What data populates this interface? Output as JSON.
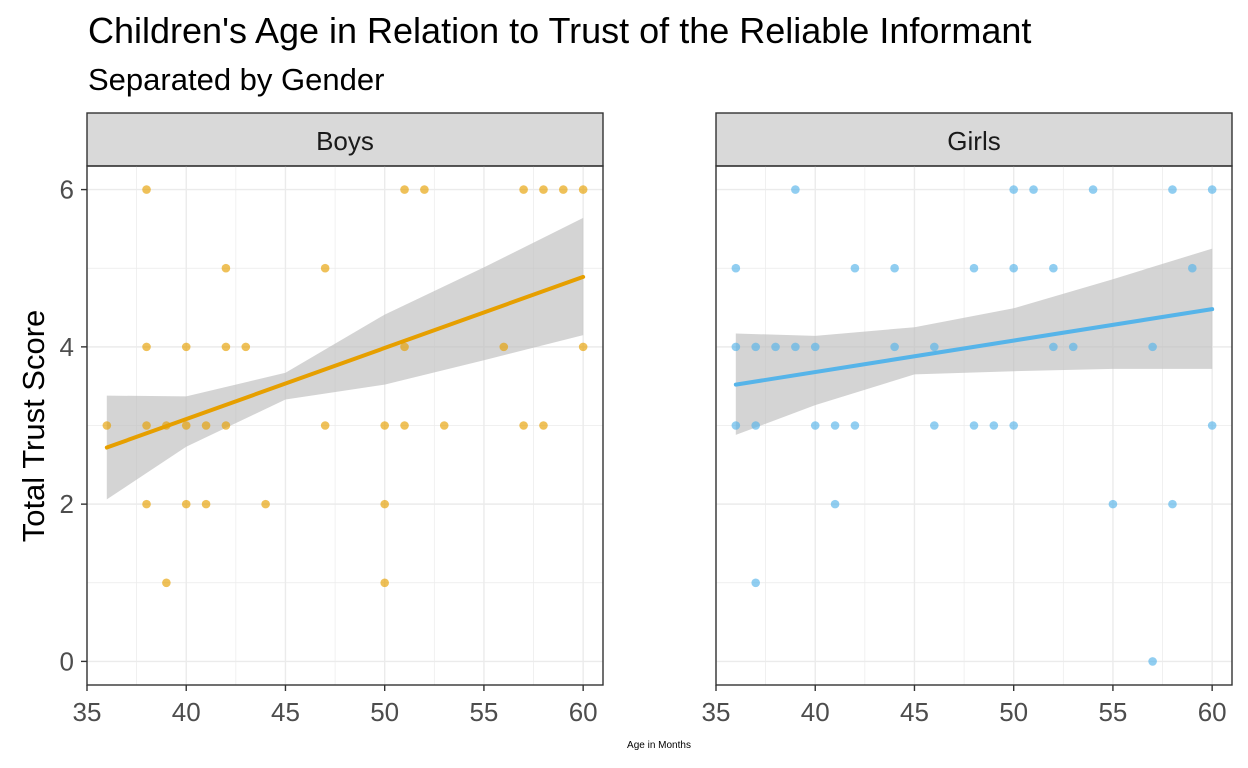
{
  "chart_data": {
    "type": "scatter",
    "title": "Children's Age in Relation to Trust of the Reliable Informant",
    "subtitle": "Separated by Gender",
    "xlabel": "Age in Months",
    "ylabel": "Total Trust Score",
    "xlim": [
      35,
      61
    ],
    "ylim": [
      -0.3,
      6.3
    ],
    "xticks": [
      35,
      40,
      45,
      50,
      55,
      60
    ],
    "yticks": [
      0,
      2,
      4,
      6
    ],
    "grid": true,
    "colors": {
      "boys": "#E69F00",
      "girls": "#56B4E9",
      "band": "#bdbdbd",
      "strip": "#d9d9d9"
    },
    "panels": [
      {
        "name": "Boys",
        "color": "#E69F00",
        "points": [
          [
            36,
            3
          ],
          [
            38,
            3
          ],
          [
            38,
            2
          ],
          [
            38,
            4
          ],
          [
            38,
            6
          ],
          [
            39,
            3
          ],
          [
            39,
            1
          ],
          [
            40,
            3
          ],
          [
            40,
            2
          ],
          [
            40,
            4
          ],
          [
            41,
            3
          ],
          [
            41,
            2
          ],
          [
            42,
            3
          ],
          [
            42,
            4
          ],
          [
            42,
            5
          ],
          [
            43,
            4
          ],
          [
            44,
            2
          ],
          [
            47,
            5
          ],
          [
            47,
            3
          ],
          [
            50,
            3
          ],
          [
            50,
            2
          ],
          [
            50,
            1
          ],
          [
            51,
            6
          ],
          [
            51,
            4
          ],
          [
            51,
            3
          ],
          [
            52,
            6
          ],
          [
            53,
            3
          ],
          [
            56,
            4
          ],
          [
            57,
            6
          ],
          [
            57,
            3
          ],
          [
            58,
            6
          ],
          [
            58,
            3
          ],
          [
            59,
            6
          ],
          [
            60,
            6
          ],
          [
            60,
            4
          ]
        ],
        "fit": {
          "x": [
            36,
            60
          ],
          "y": [
            2.72,
            4.89
          ]
        },
        "ci": [
          [
            36,
            2.06,
            3.38
          ],
          [
            40,
            2.73,
            3.37
          ],
          [
            45,
            3.33,
            3.67
          ],
          [
            50,
            3.52,
            4.41
          ],
          [
            55,
            3.83,
            5.01
          ],
          [
            60,
            4.15,
            5.64
          ]
        ]
      },
      {
        "name": "Girls",
        "color": "#56B4E9",
        "points": [
          [
            36,
            5
          ],
          [
            36,
            4
          ],
          [
            36,
            3
          ],
          [
            37,
            4
          ],
          [
            37,
            3
          ],
          [
            37,
            1
          ],
          [
            38,
            4
          ],
          [
            39,
            6
          ],
          [
            39,
            4
          ],
          [
            40,
            4
          ],
          [
            40,
            3
          ],
          [
            41,
            3
          ],
          [
            41,
            2
          ],
          [
            42,
            5
          ],
          [
            42,
            3
          ],
          [
            44,
            5
          ],
          [
            44,
            4
          ],
          [
            46,
            4
          ],
          [
            46,
            3
          ],
          [
            48,
            5
          ],
          [
            48,
            3
          ],
          [
            49,
            3
          ],
          [
            50,
            6
          ],
          [
            50,
            5
          ],
          [
            50,
            3
          ],
          [
            51,
            6
          ],
          [
            52,
            5
          ],
          [
            52,
            4
          ],
          [
            53,
            4
          ],
          [
            54,
            6
          ],
          [
            55,
            2
          ],
          [
            57,
            4
          ],
          [
            57,
            0
          ],
          [
            58,
            6
          ],
          [
            58,
            2
          ],
          [
            59,
            5
          ],
          [
            60,
            6
          ],
          [
            60,
            3
          ]
        ],
        "fit": {
          "x": [
            36,
            60
          ],
          "y": [
            3.52,
            4.48
          ]
        },
        "ci": [
          [
            36,
            2.88,
            4.17
          ],
          [
            40,
            3.26,
            4.14
          ],
          [
            45,
            3.65,
            4.25
          ],
          [
            50,
            3.69,
            4.49
          ],
          [
            55,
            3.72,
            4.86
          ],
          [
            60,
            3.72,
            5.25
          ]
        ]
      }
    ]
  }
}
